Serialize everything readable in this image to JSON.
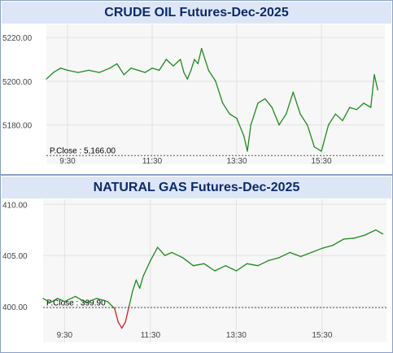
{
  "chart_data": [
    {
      "type": "line",
      "title": "CRUDE OIL Futures-Dec-2025",
      "xlabel": "",
      "ylabel": "",
      "x_ticks": [
        "9:30",
        "11:30",
        "13:30",
        "15:30"
      ],
      "x_range": [
        "9:00",
        "17:00"
      ],
      "y_ticks": [
        5220.0,
        5200.0,
        5180.0
      ],
      "y_tick_labels": [
        "5220.00",
        "5200.00",
        "5180.00"
      ],
      "ylim": [
        5162,
        5226
      ],
      "grid": true,
      "reference_line": {
        "label": "P.Close : 5,166.00",
        "value": 5166.0
      },
      "colors": {
        "above": "#1e8a1e",
        "below": "#d42020"
      },
      "series": [
        {
          "x": [
            "9:00",
            "9:10",
            "9:20",
            "9:30",
            "9:45",
            "10:00",
            "10:15",
            "10:30",
            "10:40",
            "10:50",
            "11:00",
            "11:10",
            "11:20",
            "11:30",
            "11:40",
            "11:50",
            "12:00",
            "12:10",
            "12:15",
            "12:20",
            "12:25",
            "12:30",
            "12:35",
            "12:40",
            "12:50",
            "13:00",
            "13:10",
            "13:20",
            "13:30",
            "13:40",
            "13:45",
            "13:50",
            "14:00",
            "14:10",
            "14:20",
            "14:30",
            "14:40",
            "14:50",
            "15:00",
            "15:10",
            "15:20",
            "15:30",
            "15:40",
            "15:50",
            "16:00",
            "16:10",
            "16:20",
            "16:30",
            "16:40",
            "16:45",
            "16:50"
          ],
          "y": [
            5201,
            5204,
            5206,
            5205,
            5204,
            5205,
            5204,
            5206,
            5208,
            5203,
            5206,
            5205,
            5204,
            5206,
            5205,
            5210,
            5207,
            5210,
            5204,
            5201,
            5205,
            5210,
            5208,
            5215,
            5205,
            5200,
            5190,
            5185,
            5183,
            5175,
            5168,
            5180,
            5190,
            5192,
            5188,
            5180,
            5185,
            5195,
            5185,
            5180,
            5170,
            5168,
            5180,
            5185,
            5182,
            5188,
            5187,
            5190,
            5188,
            5203,
            5196
          ]
        }
      ]
    },
    {
      "type": "line",
      "title": "NATURAL GAS Futures-Dec-2025",
      "xlabel": "",
      "ylabel": "",
      "x_ticks": [
        "9:30",
        "11:30",
        "13:30",
        "15:30"
      ],
      "x_range": [
        "9:00",
        "17:00"
      ],
      "y_ticks": [
        410.0,
        405.0,
        400.0
      ],
      "y_tick_labels": [
        "410.00",
        "405.00",
        "400.00"
      ],
      "ylim": [
        396.5,
        410.5
      ],
      "grid": true,
      "reference_line": {
        "label": "P.Close : 399.90",
        "value": 399.9
      },
      "colors": {
        "above": "#1e8a1e",
        "below": "#d42020"
      },
      "series": [
        {
          "x": [
            "9:00",
            "9:10",
            "9:20",
            "9:30",
            "9:45",
            "10:00",
            "10:15",
            "10:30",
            "10:40",
            "10:45",
            "10:50",
            "10:55",
            "11:00",
            "11:05",
            "11:10",
            "11:15",
            "11:20",
            "11:30",
            "11:40",
            "11:50",
            "12:00",
            "12:15",
            "12:30",
            "12:45",
            "13:00",
            "13:15",
            "13:30",
            "13:45",
            "14:00",
            "14:15",
            "14:30",
            "14:45",
            "15:00",
            "15:15",
            "15:30",
            "15:45",
            "16:00",
            "16:15",
            "16:30",
            "16:45",
            "16:55"
          ],
          "y": [
            400.8,
            400.4,
            400.8,
            400.5,
            401.0,
            400.4,
            400.8,
            400.5,
            399.8,
            398.5,
            397.9,
            398.5,
            400.0,
            401.5,
            402.6,
            401.8,
            403.0,
            404.5,
            405.8,
            405.0,
            405.3,
            404.8,
            404.0,
            404.2,
            403.5,
            404.0,
            403.5,
            404.2,
            404.0,
            404.5,
            404.8,
            405.3,
            404.9,
            405.3,
            405.7,
            406.0,
            406.6,
            406.7,
            407.0,
            407.5,
            407.1
          ]
        }
      ]
    }
  ]
}
